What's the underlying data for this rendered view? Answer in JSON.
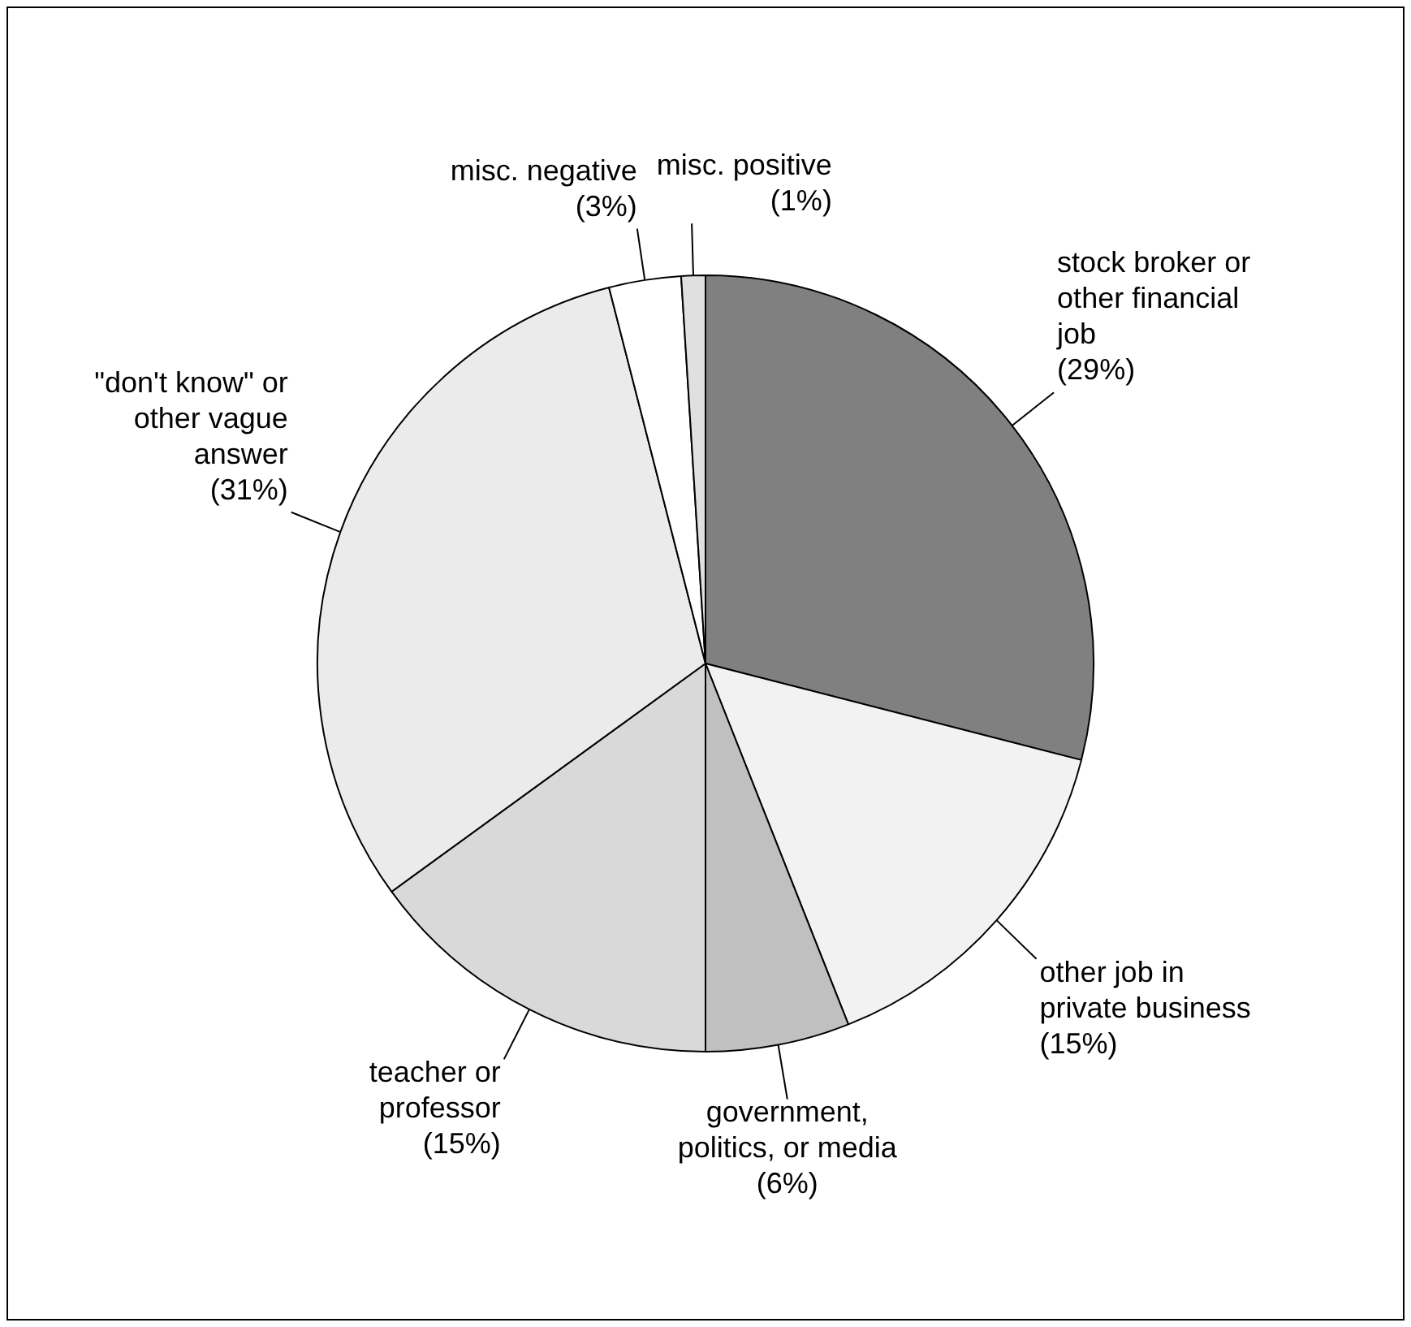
{
  "chart_data": {
    "type": "pie",
    "categories": [
      "stock broker or other financial job",
      "other job in private business",
      "government, politics, or media",
      "teacher or professor",
      "\"don't know\" or other vague answer",
      "misc. negative",
      "misc. positive"
    ],
    "values": [
      29,
      15,
      6,
      15,
      31,
      3,
      1
    ],
    "value_labels": [
      "(29%)",
      "(15%)",
      "(6%)",
      "(15%)",
      "(31%)",
      "(3%)",
      "(1%)"
    ],
    "colors": [
      "#808080",
      "#f2f2f2",
      "#c0c0c0",
      "#d9d9d9",
      "#ebebeb",
      "#ffffff",
      "#e0e0e0"
    ],
    "legend": false
  }
}
